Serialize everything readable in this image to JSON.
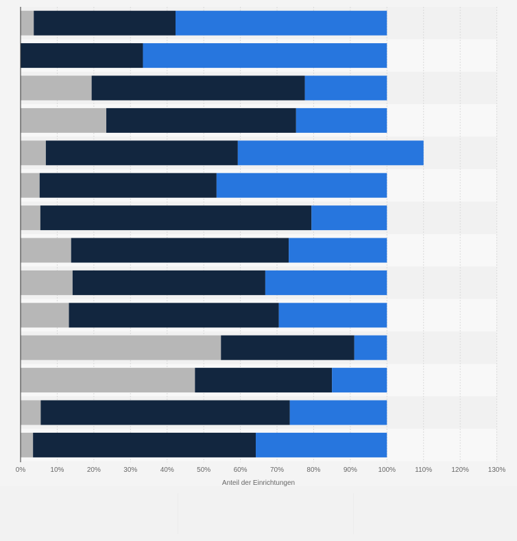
{
  "colors": {
    "page_background": "#f4f4f4",
    "band_dark": "#f1f1f1",
    "band_light": "#f8f8f8",
    "grid": "#d9d9d9",
    "axis": "#333333",
    "tick_text": "#666666"
  },
  "chart_data": {
    "type": "bar",
    "orientation": "horizontal",
    "stacked": true,
    "title": "",
    "xlabel": "Anteil der Einrichtungen",
    "ylabel": "",
    "xlim": [
      0,
      130
    ],
    "x_ticks": [
      0,
      10,
      20,
      30,
      40,
      50,
      60,
      70,
      80,
      90,
      100,
      110,
      120,
      130
    ],
    "x_tick_labels": [
      "0%",
      "10%",
      "20%",
      "30%",
      "40%",
      "50%",
      "60%",
      "70%",
      "80%",
      "90%",
      "100%",
      "110%",
      "120%",
      "130%"
    ],
    "grid": true,
    "legend": "none visible",
    "categories": [
      "",
      "",
      "",
      "",
      "",
      "",
      "",
      "",
      "",
      "",
      "",
      "",
      "",
      ""
    ],
    "series": [
      {
        "color": "#b7b7b7",
        "values": [
          3.6,
          0,
          19.4,
          23.4,
          6.9,
          5.2,
          5.4,
          13.8,
          14.2,
          13.2,
          54.7,
          47.6,
          5.5,
          3.4
        ]
      },
      {
        "color": "#12263f",
        "values": [
          38.7,
          33.4,
          58.2,
          51.8,
          52.4,
          48.3,
          74.0,
          59.4,
          52.6,
          57.3,
          36.4,
          37.4,
          68.0,
          60.8
        ]
      },
      {
        "color": "#2776de",
        "values": [
          57.7,
          66.6,
          22.4,
          24.8,
          50.7,
          46.5,
          20.6,
          26.8,
          33.2,
          29.5,
          8.9,
          15.0,
          26.5,
          35.8
        ]
      }
    ]
  }
}
